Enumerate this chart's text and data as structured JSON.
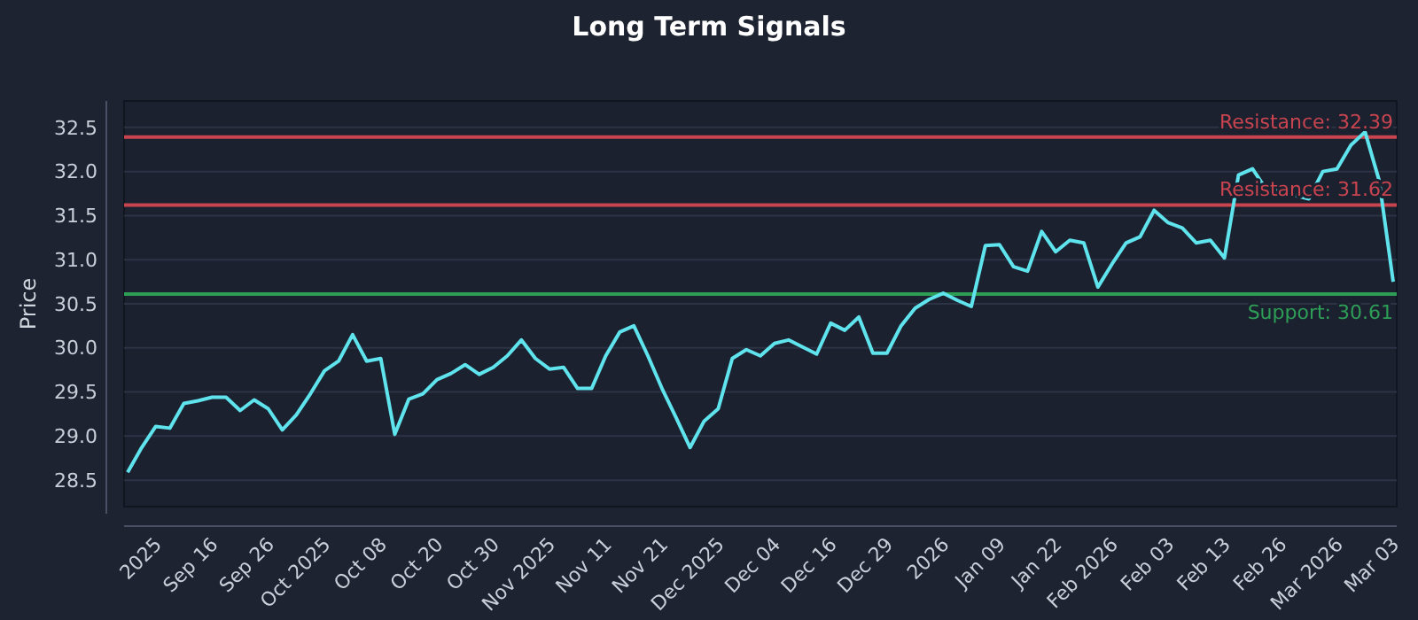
{
  "chart_data": {
    "type": "line",
    "title": "Long Term Signals",
    "ylabel": "Price",
    "categories": [
      null,
      null,
      "2025",
      null,
      null,
      null,
      "Sep 16",
      null,
      null,
      null,
      "Sep 26",
      null,
      null,
      null,
      "Oct 2025",
      null,
      null,
      null,
      "Oct 08",
      null,
      null,
      null,
      "Oct 20",
      null,
      null,
      null,
      "Oct 30",
      null,
      null,
      null,
      "Nov 2025",
      null,
      null,
      null,
      "Nov 11",
      null,
      null,
      null,
      "Nov 21",
      null,
      null,
      null,
      "Dec 2025",
      null,
      null,
      null,
      "Dec 04",
      null,
      null,
      null,
      "Dec 16",
      null,
      null,
      null,
      "Dec 29",
      null,
      null,
      null,
      "2026",
      null,
      null,
      null,
      "Jan 09",
      null,
      null,
      null,
      "Jan 22",
      null,
      null,
      null,
      "Feb 2026",
      null,
      null,
      null,
      "Feb 03",
      null,
      null,
      null,
      "Feb 13",
      null,
      null,
      null,
      "Feb 26",
      null,
      null,
      null,
      "Mar 2026",
      null,
      null,
      null,
      "Mar 03"
    ],
    "series": [
      {
        "color": "#5fe3ec",
        "values": [
          28.59,
          28.87,
          29.11,
          29.09,
          29.37,
          29.4,
          29.44,
          29.44,
          29.29,
          29.41,
          29.31,
          29.07,
          29.24,
          29.48,
          29.74,
          29.85,
          30.15,
          29.85,
          29.88,
          29.02,
          29.42,
          29.48,
          29.64,
          29.71,
          29.81,
          29.7,
          29.78,
          29.91,
          30.09,
          29.88,
          29.76,
          29.78,
          29.54,
          29.54,
          29.91,
          30.18,
          30.25,
          29.91,
          29.54,
          29.21,
          28.87,
          29.17,
          29.31,
          29.88,
          29.98,
          29.91,
          30.05,
          30.09,
          30.01,
          29.93,
          30.28,
          30.2,
          30.35,
          29.94,
          29.94,
          30.25,
          30.45,
          30.55,
          30.62,
          30.54,
          30.47,
          31.16,
          31.17,
          30.92,
          30.87,
          31.32,
          31.09,
          31.22,
          31.19,
          30.69,
          30.95,
          31.19,
          31.26,
          31.56,
          31.42,
          31.36,
          31.19,
          31.22,
          31.02,
          31.96,
          32.03,
          31.79,
          31.79,
          31.73,
          31.69,
          32.0,
          32.03,
          32.3,
          32.45,
          31.9,
          30.75
        ]
      }
    ],
    "ylim": [
      28.2,
      32.8
    ],
    "yticks": [
      28.5,
      {
        "value": 29,
        "label": "29.0"
      },
      29.5,
      {
        "value": 30,
        "label": "30.0"
      },
      30.5,
      {
        "value": 31,
        "label": "31.0"
      },
      31.5,
      {
        "value": 32,
        "label": "32.0"
      },
      32.5
    ],
    "grid": "y",
    "ref_lines": [
      {
        "axis": "y",
        "value": 32.39,
        "label": "Resistance: 32.39",
        "color": "#c8444f"
      },
      {
        "axis": "y",
        "value": 31.62,
        "label": "Resistance: 31.62",
        "color": "#c8444f"
      },
      {
        "axis": "y",
        "value": 30.61,
        "label": "Support: 30.61",
        "color": "#2e9e57"
      }
    ]
  }
}
